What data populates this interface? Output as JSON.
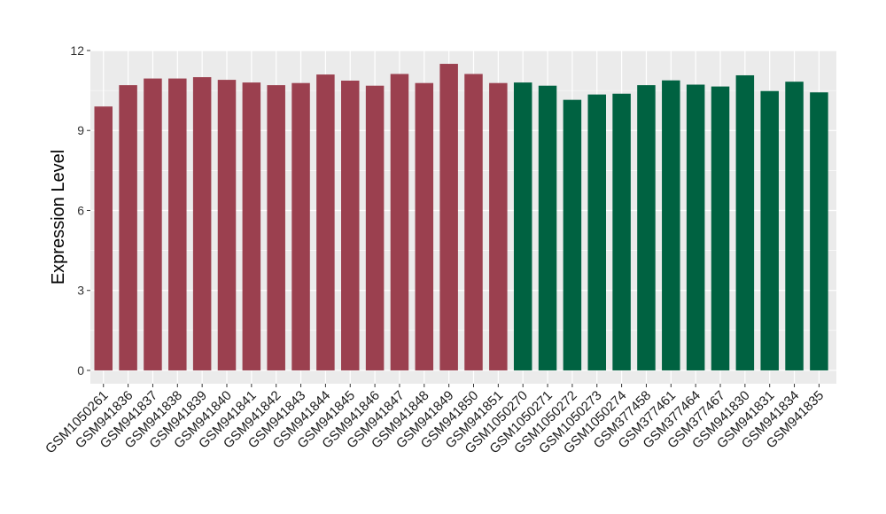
{
  "chart_data": {
    "type": "bar",
    "title": "",
    "xlabel": "",
    "ylabel": "Expression Level",
    "ylim": [
      -0.5,
      12
    ],
    "yticks": [
      0,
      3,
      6,
      9,
      12
    ],
    "grid": true,
    "categories": [
      "GSM1050261",
      "GSM941836",
      "GSM941837",
      "GSM941838",
      "GSM941839",
      "GSM941840",
      "GSM941841",
      "GSM941842",
      "GSM941843",
      "GSM941844",
      "GSM941845",
      "GSM941846",
      "GSM941847",
      "GSM941848",
      "GSM941849",
      "GSM941850",
      "GSM941851",
      "GSM1050270",
      "GSM1050271",
      "GSM1050272",
      "GSM1050273",
      "GSM1050274",
      "GSM377458",
      "GSM377461",
      "GSM377464",
      "GSM377467",
      "GSM941830",
      "GSM941831",
      "GSM941834",
      "GSM941835"
    ],
    "values": [
      9.9,
      10.7,
      10.95,
      10.95,
      11.0,
      10.9,
      10.8,
      10.7,
      10.78,
      11.1,
      10.87,
      10.68,
      11.12,
      10.78,
      11.5,
      11.12,
      10.78,
      10.8,
      10.68,
      10.15,
      10.35,
      10.38,
      10.7,
      10.88,
      10.72,
      10.65,
      11.07,
      10.48,
      10.83,
      10.43
    ],
    "groups": [
      0,
      0,
      0,
      0,
      0,
      0,
      0,
      0,
      0,
      0,
      0,
      0,
      0,
      0,
      0,
      0,
      0,
      1,
      1,
      1,
      1,
      1,
      1,
      1,
      1,
      1,
      1,
      1,
      1,
      1
    ],
    "group_colors": [
      "#9b404f",
      "#006241"
    ],
    "panel_color": "#ebebeb",
    "grid_color": "#ffffff"
  }
}
